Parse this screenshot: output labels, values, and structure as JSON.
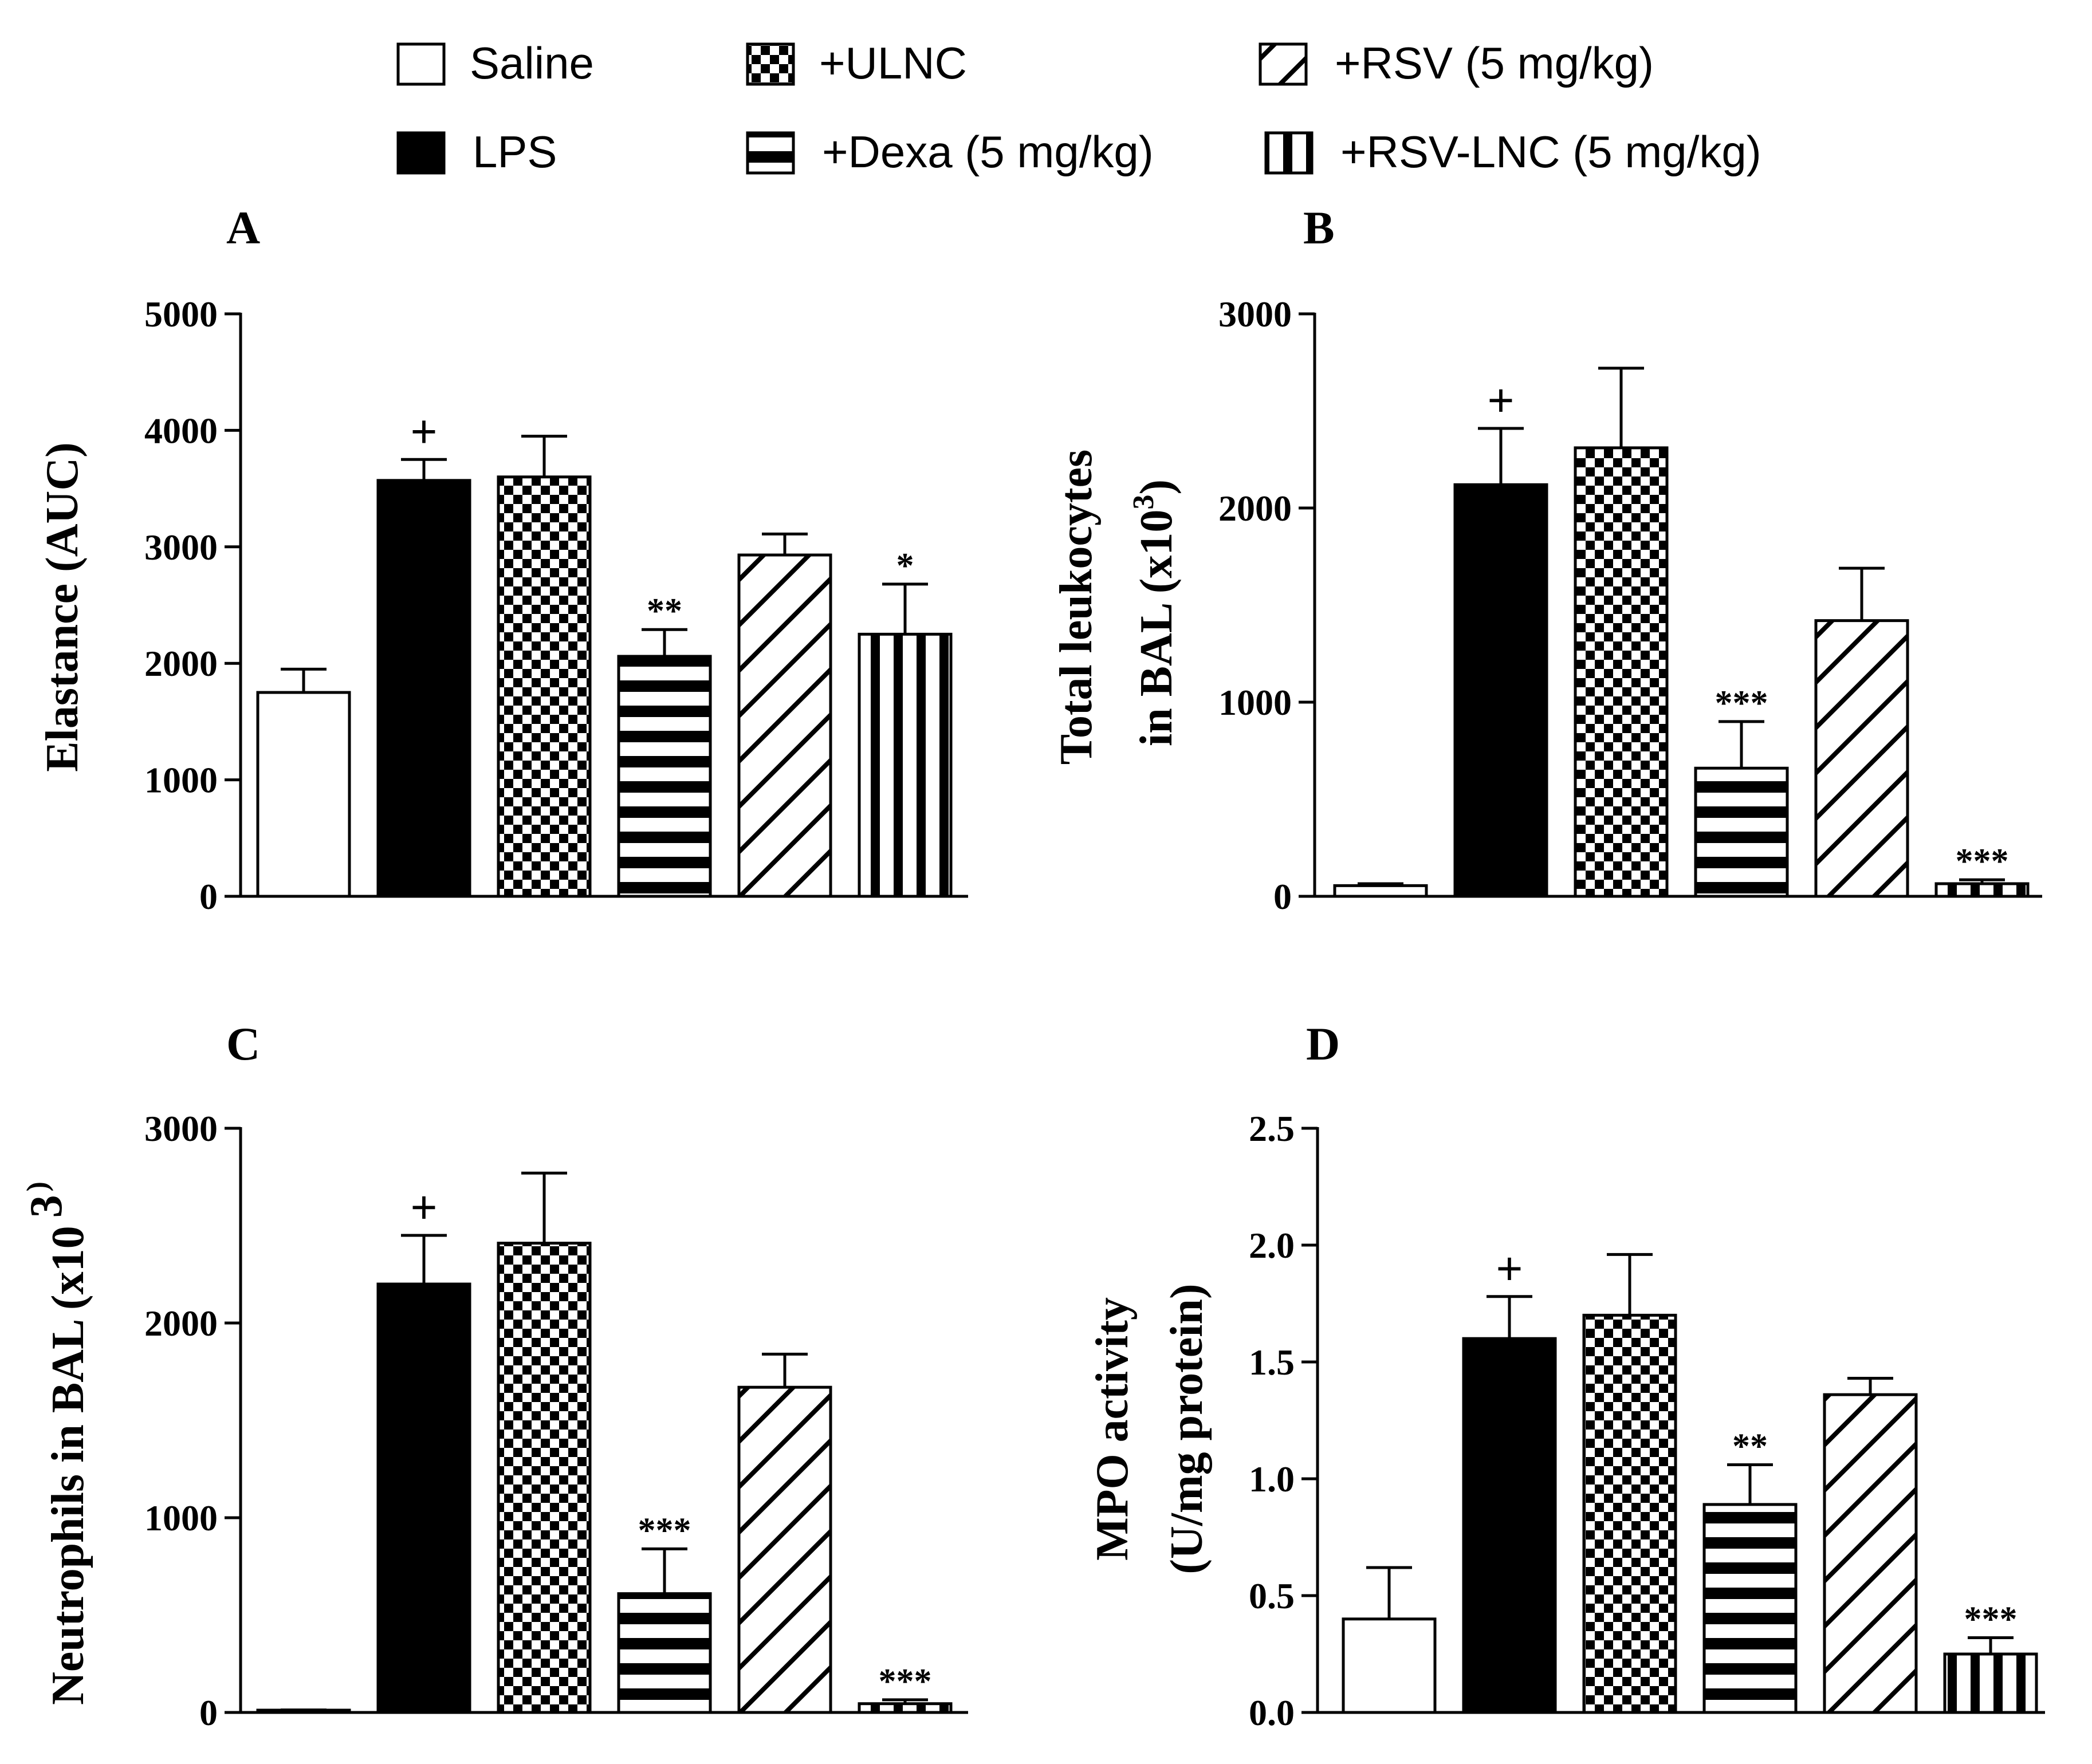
{
  "legend": {
    "items": [
      {
        "label": "Saline",
        "pattern": "white"
      },
      {
        "label": "LPS",
        "pattern": "black"
      },
      {
        "label": "+ULNC",
        "pattern": "check"
      },
      {
        "label": "+Dexa (5 mg/kg)",
        "pattern": "hstripe"
      },
      {
        "label": "+RSV (5 mg/kg)",
        "pattern": "diag"
      },
      {
        "label": "+RSV-LNC (5 mg/kg)",
        "pattern": "vstripe"
      }
    ]
  },
  "chart_data": [
    {
      "type": "bar",
      "panel": "A",
      "ylabel": "Elastance (AUC)",
      "ylim": [
        0,
        5000
      ],
      "yticks": [
        "0",
        "1000",
        "2000",
        "3000",
        "4000",
        "5000"
      ],
      "categories": [
        "Saline",
        "LPS",
        "+ULNC",
        "+Dexa (5 mg/kg)",
        "+RSV (5 mg/kg)",
        "+RSV-LNC (5 mg/kg)"
      ],
      "values": [
        1750,
        3570,
        3600,
        2060,
        2930,
        2250
      ],
      "errors": [
        200,
        180,
        350,
        230,
        180,
        430
      ],
      "annotations": [
        "",
        "+",
        "",
        "**",
        "",
        "*"
      ]
    },
    {
      "type": "bar",
      "panel": "B",
      "ylabel_lines": [
        "Total leukocytes",
        "in BAL (x10",
        "3",
        ")"
      ],
      "ylim": [
        0,
        3000
      ],
      "yticks": [
        "0",
        "1000",
        "2000",
        "3000"
      ],
      "categories": [
        "Saline",
        "LPS",
        "+ULNC",
        "+Dexa (5 mg/kg)",
        "+RSV (5 mg/kg)",
        "+RSV-LNC (5 mg/kg)"
      ],
      "values": [
        55,
        2120,
        2310,
        660,
        1420,
        65
      ],
      "errors": [
        10,
        290,
        410,
        240,
        270,
        20
      ],
      "annotations": [
        "",
        "+",
        "",
        "***",
        "",
        "***"
      ]
    },
    {
      "type": "bar",
      "panel": "C",
      "ylabel_lines": [
        "Neutrophils in BAL (x10",
        "3",
        ")"
      ],
      "ylim": [
        0,
        3000
      ],
      "yticks": [
        "0",
        "1000",
        "2000",
        "3000"
      ],
      "categories": [
        "Saline",
        "LPS",
        "+ULNC",
        "+Dexa (5 mg/kg)",
        "+RSV (5 mg/kg)",
        "+RSV-LNC (5 mg/kg)"
      ],
      "values": [
        10,
        2200,
        2410,
        610,
        1670,
        45
      ],
      "errors": [
        3,
        250,
        360,
        230,
        170,
        20
      ],
      "annotations": [
        "",
        "+",
        "",
        "***",
        "",
        "***"
      ]
    },
    {
      "type": "bar",
      "panel": "D",
      "ylabel_lines": [
        "MPO activity",
        "(U/mg protein)"
      ],
      "ylim": [
        0,
        2.5
      ],
      "yticks": [
        "0.0",
        "0.5",
        "1.0",
        "1.5",
        "2.0",
        "2.5"
      ],
      "categories": [
        "Saline",
        "LPS",
        "+ULNC",
        "+Dexa (5 mg/kg)",
        "+RSV (5 mg/kg)",
        "+RSV-LNC (5 mg/kg)"
      ],
      "values": [
        0.4,
        1.6,
        1.7,
        0.89,
        1.36,
        0.25
      ],
      "errors": [
        0.22,
        0.18,
        0.26,
        0.17,
        0.07,
        0.07
      ],
      "annotations": [
        "",
        "+",
        "",
        "**",
        "",
        "***"
      ]
    }
  ]
}
